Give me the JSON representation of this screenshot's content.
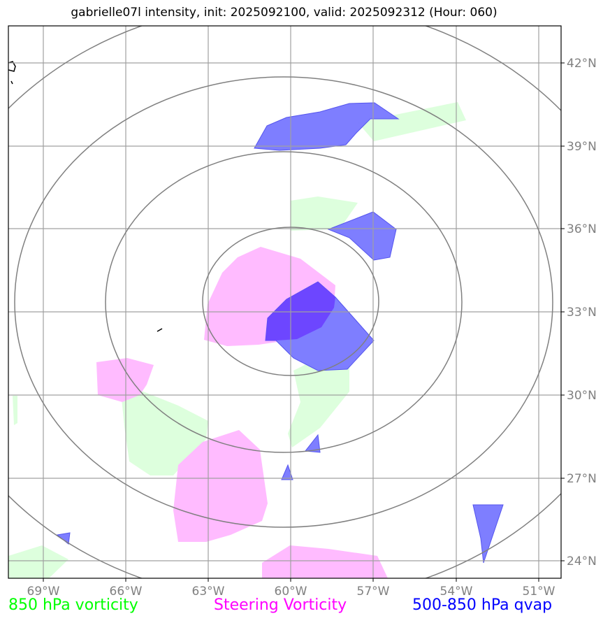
{
  "title": "gabrielle07l intensity, init: 2025092100, valid: 2025092312 (Hour: 060)",
  "longitude_labels": [
    "69°W",
    "66°W",
    "63°W",
    "60°W",
    "57°W",
    "54°W",
    "51°W"
  ],
  "latitude_labels": [
    "42°N",
    "39°N",
    "36°N",
    "33°N",
    "30°N",
    "27°N",
    "24°N"
  ],
  "legend": {
    "vorticity_850": {
      "label": "850 hPa vorticity",
      "color": "#00ff00"
    },
    "steering_vorticity": {
      "label": "Steering Vorticity",
      "color": "#ff00ff"
    },
    "qvap_500_850": {
      "label": "500-850 hPa qvap",
      "color": "#0000ff"
    }
  },
  "colors": {
    "green_fill": "#ddffdd",
    "magenta_fill": "#ffbbff",
    "blue_fill": "#7777ff",
    "grid": "#a0a0a0",
    "range_rings": "#808080"
  }
}
